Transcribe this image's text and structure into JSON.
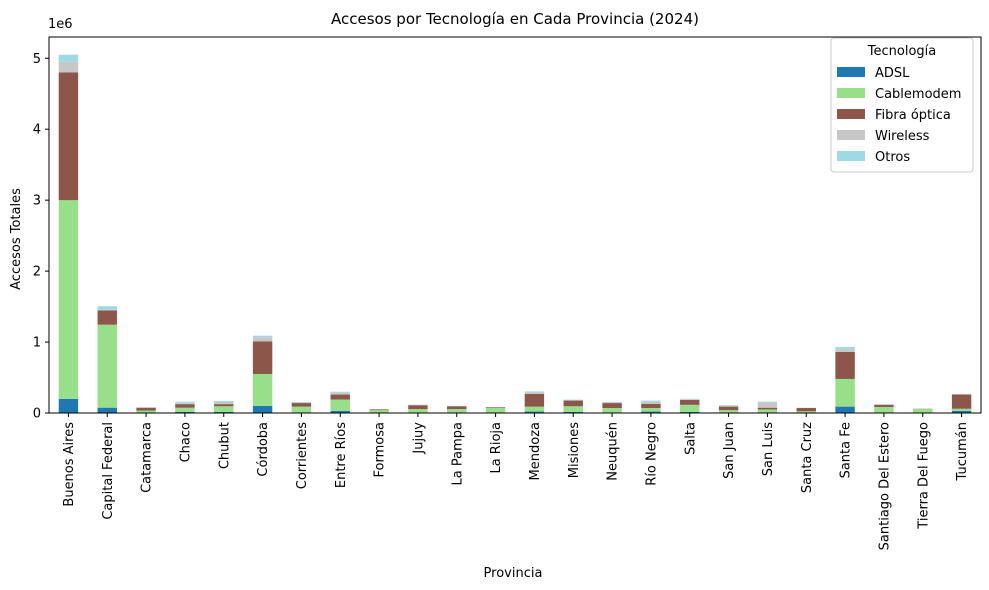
{
  "chart_data": {
    "type": "bar",
    "stacked": true,
    "title": "Accesos por Tecnología en Cada Provincia (2024)",
    "xlabel": "Provincia",
    "ylabel": "Accesos Totales",
    "y_offset_label": "1e6",
    "ylim": [
      0,
      5300000
    ],
    "yticks": [
      0,
      1000000,
      2000000,
      3000000,
      4000000,
      5000000
    ],
    "ytick_labels": [
      "0",
      "1",
      "2",
      "3",
      "4",
      "5"
    ],
    "grid": false,
    "legend_title": "Tecnología",
    "legend_position": "top-right",
    "categories": [
      "Buenos Aires",
      "Capital Federal",
      "Catamarca",
      "Chaco",
      "Chubut",
      "Córdoba",
      "Corrientes",
      "Entre Ríos",
      "Formosa",
      "Jujuy",
      "La Pampa",
      "La Rioja",
      "Mendoza",
      "Misiones",
      "Neuquén",
      "Río Negro",
      "Salta",
      "San Juan",
      "San Luis",
      "Santa Cruz",
      "Santa Fe",
      "Santiago Del Estero",
      "Tierra Del Fuego",
      "Tucumán"
    ],
    "series": [
      {
        "name": "ADSL",
        "color": "#1f77b4",
        "values": [
          200000,
          75000,
          5000,
          15000,
          15000,
          100000,
          10000,
          30000,
          5000,
          5000,
          10000,
          5000,
          20000,
          15000,
          10000,
          20000,
          15000,
          10000,
          10000,
          5000,
          90000,
          5000,
          2000,
          30000
        ]
      },
      {
        "name": "Cablemodem",
        "color": "#98df8a",
        "values": [
          2800000,
          1170000,
          30000,
          60000,
          80000,
          450000,
          80000,
          160000,
          35000,
          50000,
          45000,
          65000,
          70000,
          80000,
          60000,
          50000,
          100000,
          30000,
          40000,
          20000,
          390000,
          80000,
          55000,
          30000
        ]
      },
      {
        "name": "Fibra óptica",
        "color": "#8c564b",
        "values": [
          1800000,
          200000,
          40000,
          50000,
          30000,
          460000,
          50000,
          70000,
          10000,
          55000,
          40000,
          10000,
          180000,
          80000,
          70000,
          60000,
          70000,
          50000,
          25000,
          45000,
          380000,
          30000,
          3000,
          200000
        ]
      },
      {
        "name": "Wireless",
        "color": "#c7c7c7",
        "values": [
          150000,
          10000,
          3000,
          20000,
          30000,
          60000,
          10000,
          25000,
          3000,
          5000,
          5000,
          3000,
          20000,
          10000,
          10000,
          30000,
          10000,
          15000,
          75000,
          3000,
          40000,
          5000,
          2000,
          5000
        ]
      },
      {
        "name": "Otros",
        "color": "#9edae5",
        "values": [
          100000,
          50000,
          2000,
          15000,
          15000,
          20000,
          5000,
          15000,
          2000,
          3000,
          3000,
          2000,
          15000,
          5000,
          5000,
          15000,
          5000,
          5000,
          10000,
          2000,
          30000,
          5000,
          1000,
          5000
        ]
      }
    ]
  }
}
